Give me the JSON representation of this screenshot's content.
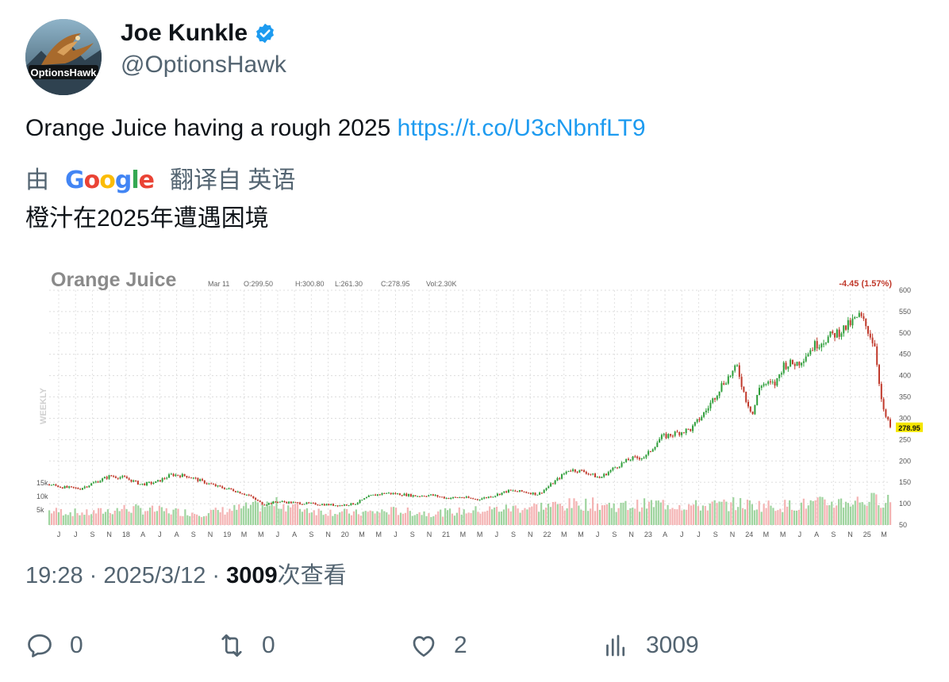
{
  "author": {
    "name": "Joe Kunkle",
    "handle": "@OptionsHawk",
    "avatar_text": "OptionsHawk"
  },
  "tweet": {
    "text": "Orange Juice having a rough 2025 ",
    "link": "https://t.co/U3cNbnfLT9"
  },
  "translation": {
    "prefix": "由",
    "provider": "Google",
    "suffix": "翻译自 英语",
    "text": "橙汁在2025年遭遇困境"
  },
  "chart_data": {
    "type": "candlestick",
    "title": "Orange Juice",
    "info": {
      "date": "Mar 11",
      "open": "O:299.50",
      "high": "H:300.80",
      "low": "L:261.30",
      "close": "C:278.95",
      "volume": "Vol:2.30K"
    },
    "change_label": "-4.45 (1.57%)",
    "last_price_label": "278.95",
    "last_price": 278.95,
    "period_label": "WEEKLY",
    "y_ticks": [
      600,
      550,
      500,
      450,
      400,
      350,
      300,
      250,
      200,
      150,
      100,
      50
    ],
    "y_tick_labels": [
      "600",
      "550",
      "500",
      "450",
      "400",
      "350",
      "300",
      "250",
      "200",
      "150",
      "100",
      "50"
    ],
    "ylim": [
      50,
      600
    ],
    "volume_tick_labels": [
      "15k",
      "10k",
      "5k"
    ],
    "x_labels": [
      "J",
      "J",
      "S",
      "N",
      "18",
      "A",
      "J",
      "A",
      "S",
      "N",
      "19",
      "M",
      "M",
      "J",
      "A",
      "S",
      "N",
      "20",
      "M",
      "M",
      "J",
      "S",
      "N",
      "21",
      "M",
      "M",
      "J",
      "S",
      "N",
      "22",
      "M",
      "M",
      "J",
      "S",
      "N",
      "23",
      "A",
      "J",
      "J",
      "S",
      "N",
      "24",
      "M",
      "M",
      "J",
      "A",
      "S",
      "N",
      "25",
      "M"
    ],
    "price_path": [
      [
        0,
        145
      ],
      [
        20,
        138
      ],
      [
        40,
        135
      ],
      [
        60,
        150
      ],
      [
        80,
        165
      ],
      [
        100,
        160
      ],
      [
        120,
        145
      ],
      [
        140,
        150
      ],
      [
        160,
        168
      ],
      [
        180,
        165
      ],
      [
        200,
        152
      ],
      [
        220,
        140
      ],
      [
        240,
        132
      ],
      [
        260,
        120
      ],
      [
        280,
        98
      ],
      [
        300,
        105
      ],
      [
        320,
        102
      ],
      [
        340,
        100
      ],
      [
        360,
        98
      ],
      [
        380,
        96
      ],
      [
        400,
        100
      ],
      [
        420,
        118
      ],
      [
        440,
        125
      ],
      [
        460,
        122
      ],
      [
        480,
        118
      ],
      [
        500,
        120
      ],
      [
        520,
        113
      ],
      [
        540,
        115
      ],
      [
        560,
        110
      ],
      [
        580,
        118
      ],
      [
        600,
        130
      ],
      [
        620,
        128
      ],
      [
        640,
        122
      ],
      [
        660,
        150
      ],
      [
        680,
        180
      ],
      [
        700,
        175
      ],
      [
        720,
        160
      ],
      [
        740,
        185
      ],
      [
        760,
        205
      ],
      [
        780,
        210
      ],
      [
        800,
        255
      ],
      [
        820,
        265
      ],
      [
        840,
        275
      ],
      [
        860,
        320
      ],
      [
        880,
        380
      ],
      [
        900,
        420
      ],
      [
        910,
        350
      ],
      [
        920,
        310
      ],
      [
        930,
        380
      ],
      [
        950,
        380
      ],
      [
        960,
        425
      ],
      [
        980,
        430
      ],
      [
        1000,
        470
      ],
      [
        1020,
        490
      ],
      [
        1040,
        510
      ],
      [
        1060,
        540
      ],
      [
        1070,
        510
      ],
      [
        1080,
        470
      ],
      [
        1090,
        320
      ],
      [
        1100,
        278.95
      ]
    ],
    "volume_path": [
      [
        0,
        6
      ],
      [
        50,
        5
      ],
      [
        100,
        7
      ],
      [
        150,
        6
      ],
      [
        200,
        5
      ],
      [
        250,
        7
      ],
      [
        300,
        9
      ],
      [
        350,
        6
      ],
      [
        400,
        5
      ],
      [
        450,
        6
      ],
      [
        500,
        5
      ],
      [
        550,
        6
      ],
      [
        600,
        7
      ],
      [
        650,
        8
      ],
      [
        700,
        9
      ],
      [
        750,
        8
      ],
      [
        800,
        9
      ],
      [
        850,
        8
      ],
      [
        900,
        9
      ],
      [
        950,
        8
      ],
      [
        1000,
        9
      ],
      [
        1050,
        10
      ],
      [
        1100,
        11
      ]
    ],
    "up_color": "#2e9e3a",
    "down_color": "#c0392b",
    "up_volume_color": "#9fd49f",
    "down_volume_color": "#f4b3b3"
  },
  "meta": {
    "time": "19:28 · 2025/3/12 · ",
    "views": "3009",
    "views_label": "次查看"
  },
  "actions": {
    "reply_count": "0",
    "retweet_count": "0",
    "like_count": "2",
    "views_count": "3009"
  },
  "colors": {
    "link": "#1d9bf0",
    "muted": "#536471",
    "verified": "#1d9bf0"
  }
}
